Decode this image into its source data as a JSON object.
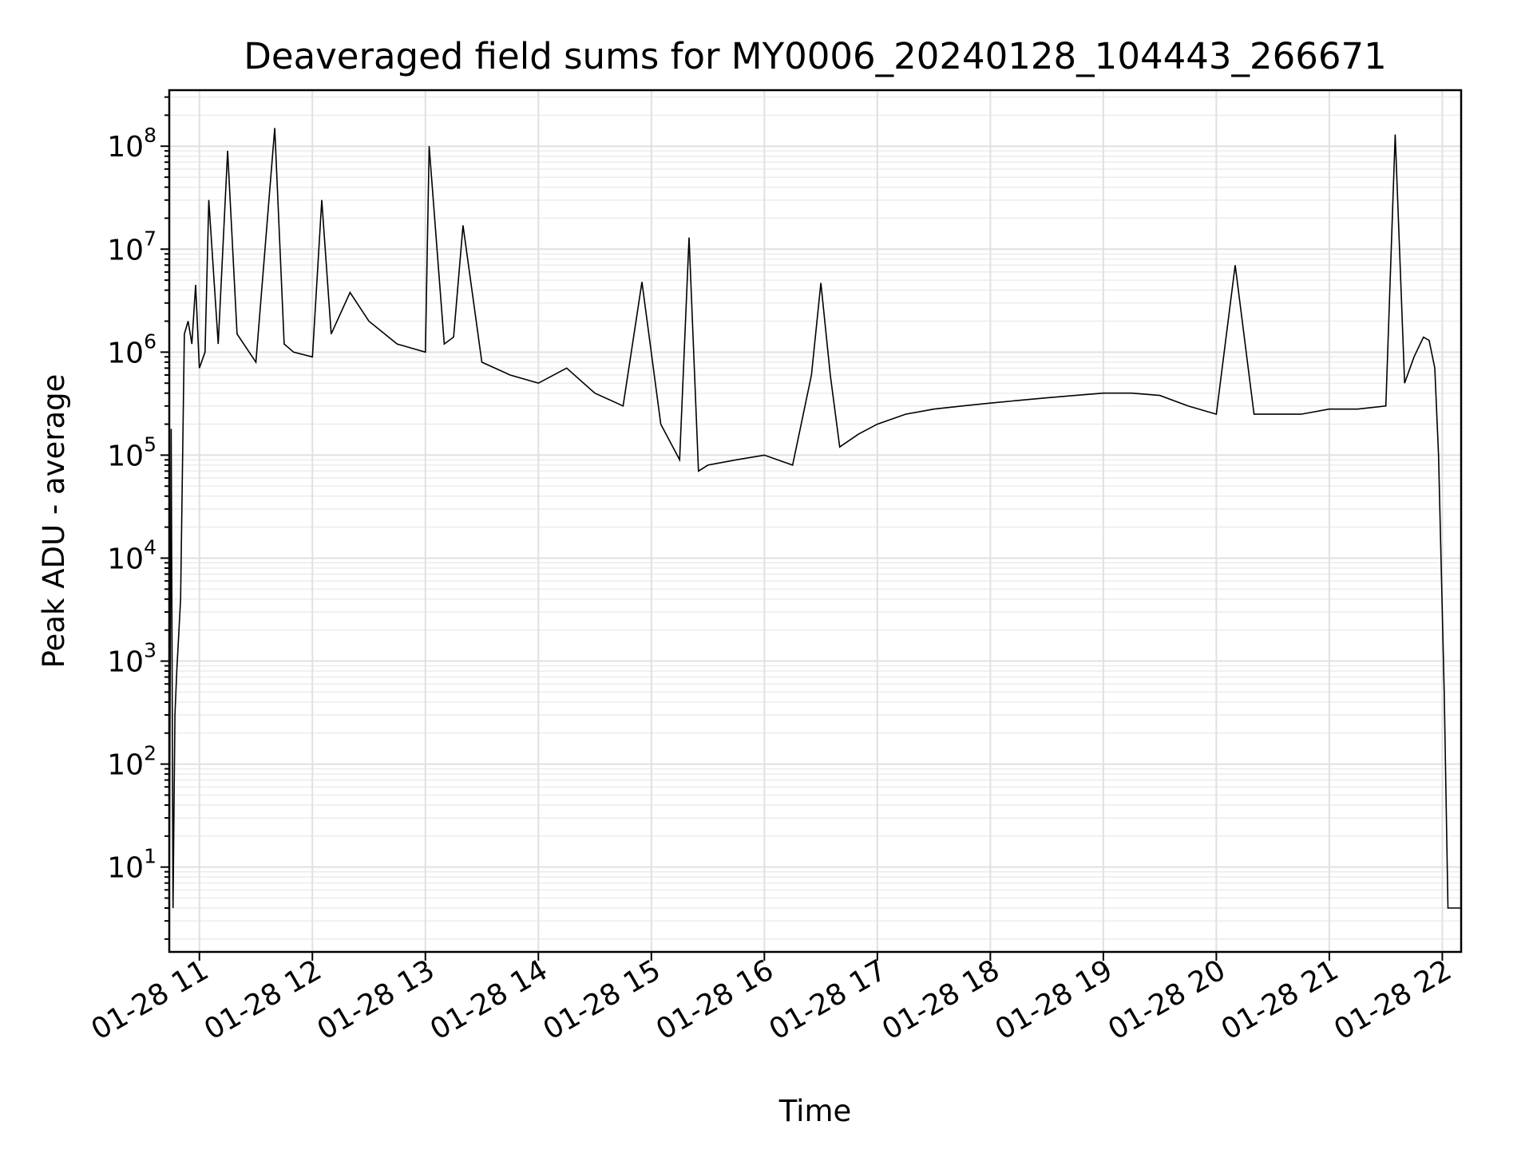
{
  "chart_data": {
    "type": "line",
    "title": "Deaveraged field sums for MY0006_20240128_104443_266671",
    "xlabel": "Time",
    "ylabel": "Peak ADU - average",
    "y_scale": "log",
    "grid": true,
    "grid_minor": true,
    "legend": "none",
    "line_color": "#000000",
    "xlim": [
      "2024-01-28 10:44",
      "2024-01-28 22:10"
    ],
    "ylim": [
      1.5,
      350000000.0
    ],
    "x_ticks": [
      {
        "value": "2024-01-28 11:00",
        "label": "01-28 11"
      },
      {
        "value": "2024-01-28 12:00",
        "label": "01-28 12"
      },
      {
        "value": "2024-01-28 13:00",
        "label": "01-28 13"
      },
      {
        "value": "2024-01-28 14:00",
        "label": "01-28 14"
      },
      {
        "value": "2024-01-28 15:00",
        "label": "01-28 15"
      },
      {
        "value": "2024-01-28 16:00",
        "label": "01-28 16"
      },
      {
        "value": "2024-01-28 17:00",
        "label": "01-28 17"
      },
      {
        "value": "2024-01-28 18:00",
        "label": "01-28 18"
      },
      {
        "value": "2024-01-28 19:00",
        "label": "01-28 19"
      },
      {
        "value": "2024-01-28 20:00",
        "label": "01-28 20"
      },
      {
        "value": "2024-01-28 21:00",
        "label": "01-28 21"
      },
      {
        "value": "2024-01-28 22:00",
        "label": "01-28 22"
      }
    ],
    "y_ticks": [
      {
        "value": 10,
        "base": "10",
        "exp": "1"
      },
      {
        "value": 100,
        "base": "10",
        "exp": "2"
      },
      {
        "value": 1000,
        "base": "10",
        "exp": "3"
      },
      {
        "value": 10000,
        "base": "10",
        "exp": "4"
      },
      {
        "value": 100000,
        "base": "10",
        "exp": "5"
      },
      {
        "value": 1000000,
        "base": "10",
        "exp": "6"
      },
      {
        "value": 10000000,
        "base": "10",
        "exp": "7"
      },
      {
        "value": 100000000,
        "base": "10",
        "exp": "8"
      }
    ],
    "series": [
      {
        "x": [
          "2024-01-28 10:44",
          "2024-01-28 10:45",
          "2024-01-28 10:46",
          "2024-01-28 10:47",
          "2024-01-28 10:48",
          "2024-01-28 10:50",
          "2024-01-28 10:52",
          "2024-01-28 10:54",
          "2024-01-28 10:56",
          "2024-01-28 10:58",
          "2024-01-28 11:00",
          "2024-01-28 11:03",
          "2024-01-28 11:05",
          "2024-01-28 11:10",
          "2024-01-28 11:15",
          "2024-01-28 11:20",
          "2024-01-28 11:30",
          "2024-01-28 11:40",
          "2024-01-28 11:45",
          "2024-01-28 11:50",
          "2024-01-28 12:00",
          "2024-01-28 12:05",
          "2024-01-28 12:10",
          "2024-01-28 12:20",
          "2024-01-28 12:30",
          "2024-01-28 12:45",
          "2024-01-28 13:00",
          "2024-01-28 13:02",
          "2024-01-28 13:10",
          "2024-01-28 13:15",
          "2024-01-28 13:20",
          "2024-01-28 13:30",
          "2024-01-28 13:45",
          "2024-01-28 14:00",
          "2024-01-28 14:15",
          "2024-01-28 14:30",
          "2024-01-28 14:45",
          "2024-01-28 14:55",
          "2024-01-28 15:05",
          "2024-01-28 15:15",
          "2024-01-28 15:20",
          "2024-01-28 15:25",
          "2024-01-28 15:30",
          "2024-01-28 15:45",
          "2024-01-28 16:00",
          "2024-01-28 16:15",
          "2024-01-28 16:25",
          "2024-01-28 16:30",
          "2024-01-28 16:35",
          "2024-01-28 16:40",
          "2024-01-28 16:50",
          "2024-01-28 17:00",
          "2024-01-28 17:15",
          "2024-01-28 17:30",
          "2024-01-28 17:45",
          "2024-01-28 18:00",
          "2024-01-28 18:15",
          "2024-01-28 18:30",
          "2024-01-28 18:45",
          "2024-01-28 19:00",
          "2024-01-28 19:15",
          "2024-01-28 19:30",
          "2024-01-28 19:45",
          "2024-01-28 20:00",
          "2024-01-28 20:10",
          "2024-01-28 20:20",
          "2024-01-28 20:30",
          "2024-01-28 20:45",
          "2024-01-28 21:00",
          "2024-01-28 21:15",
          "2024-01-28 21:30",
          "2024-01-28 21:35",
          "2024-01-28 21:40",
          "2024-01-28 21:45",
          "2024-01-28 21:50",
          "2024-01-28 21:53",
          "2024-01-28 21:56",
          "2024-01-28 21:58",
          "2024-01-28 22:00",
          "2024-01-28 22:01",
          "2024-01-28 22:03",
          "2024-01-28 22:05",
          "2024-01-28 22:10"
        ],
        "values": [
          4,
          180000,
          4,
          300,
          800,
          4000,
          1500000,
          2000000,
          1200000,
          4500000,
          700000,
          1000000,
          30000000,
          1200000,
          90000000,
          1500000,
          800000,
          150000000,
          1200000,
          1000000,
          900000,
          30000000,
          1500000,
          3800000,
          2000000,
          1200000,
          1000000,
          100000000,
          1200000,
          1400000,
          17000000,
          800000,
          600000,
          500000,
          700000,
          400000,
          300000,
          4800000,
          200000,
          90000,
          13000000,
          70000,
          80000,
          90000,
          100000,
          80000,
          600000,
          4700000,
          600000,
          120000,
          160000,
          200000,
          250000,
          280000,
          300000,
          320000,
          340000,
          360000,
          380000,
          400000,
          400000,
          380000,
          300000,
          250000,
          7000000,
          250000,
          250000,
          250000,
          280000,
          280000,
          300000,
          130000000,
          500000,
          900000,
          1400000,
          1300000,
          700000,
          100000,
          3000,
          500,
          4,
          4,
          4
        ]
      }
    ]
  }
}
